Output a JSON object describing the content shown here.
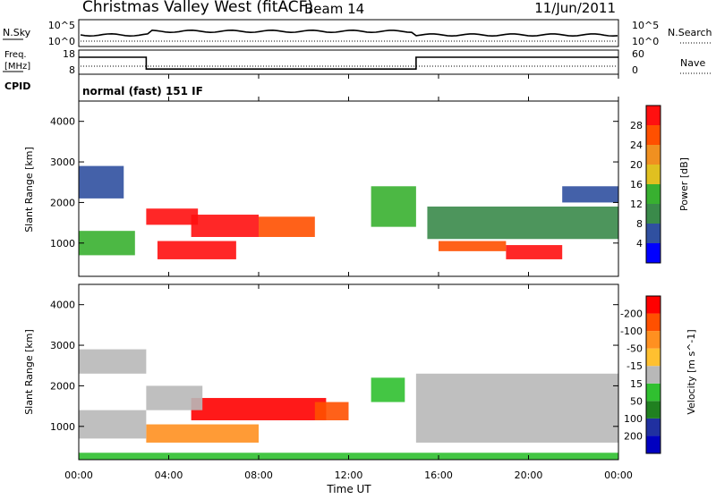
{
  "header": {
    "station": "Christmas Valley West (fitACF)",
    "beam": "Beam 14",
    "date": "11/Jun/2011"
  },
  "noise_panel": {
    "left_label": "N.Sky",
    "tick_hi": "10^5",
    "tick_lo": "10^0",
    "right_tick_hi": "10^5",
    "right_tick_lo": "10^0",
    "right_label": "N.Search"
  },
  "freq_panel": {
    "left_label_line1": "Freq.",
    "left_label_line2": "[MHz]",
    "tick_hi": "18",
    "tick_lo": "8",
    "right_tick_hi": "60",
    "right_tick_lo": "0",
    "right_label": "Nave"
  },
  "cpid_panel": {
    "label": "CPID",
    "mode": "normal (fast) 151 IF"
  },
  "axes": {
    "x_ticks": [
      "00:00",
      "04:00",
      "08:00",
      "12:00",
      "16:00",
      "20:00",
      "00:00"
    ],
    "x_label": "Time UT",
    "y_ticks": [
      "1000",
      "2000",
      "3000",
      "4000"
    ],
    "y_label": "Slant Range [km]"
  },
  "colors": {
    "power": [
      "#0000ff",
      "#3050a0",
      "#3a8a4a",
      "#38b030",
      "#e0c020",
      "#f09020",
      "#ff5000",
      "#ff1010"
    ],
    "velocity": [
      "#ff0000",
      "#ff5000",
      "#ff9020",
      "#ffc030",
      "#b8b8b8",
      "#30c030",
      "#208020",
      "#2030a0",
      "#0000c0"
    ]
  },
  "chart_data": [
    {
      "type": "heatmap",
      "panel": "power",
      "x_range_hours": [
        0,
        24
      ],
      "ylim": [
        180,
        4500
      ],
      "colorbar_label": "Power [dB]",
      "colorbar_ticks": [
        "4",
        "8",
        "12",
        "16",
        "20",
        "24",
        "28"
      ],
      "regions": [
        {
          "t0": 3.0,
          "t1": 5.3,
          "r0": 1450,
          "r1": 1850,
          "level": 7
        },
        {
          "t0": 5.0,
          "t1": 8.0,
          "r0": 1150,
          "r1": 1700,
          "level": 7
        },
        {
          "t0": 8.0,
          "t1": 10.5,
          "r0": 1150,
          "r1": 1650,
          "level": 6
        },
        {
          "t0": 3.5,
          "t1": 7.0,
          "r0": 600,
          "r1": 1050,
          "level": 7
        },
        {
          "t0": 19.0,
          "t1": 21.5,
          "r0": 600,
          "r1": 950,
          "level": 7
        },
        {
          "t0": 16.0,
          "t1": 19.0,
          "r0": 800,
          "r1": 1050,
          "level": 6
        },
        {
          "t0": 0.0,
          "t1": 2.5,
          "r0": 700,
          "r1": 1300,
          "level": 3
        },
        {
          "t0": 0.0,
          "t1": 2.0,
          "r0": 2100,
          "r1": 2900,
          "level": 1
        },
        {
          "t0": 13.0,
          "t1": 15.0,
          "r0": 1400,
          "r1": 2400,
          "level": 3
        },
        {
          "t0": 15.5,
          "t1": 24.0,
          "r0": 1100,
          "r1": 1900,
          "level": 2
        },
        {
          "t0": 21.5,
          "t1": 24.0,
          "r0": 2000,
          "r1": 2400,
          "level": 1
        }
      ]
    },
    {
      "type": "heatmap",
      "panel": "velocity",
      "x_range_hours": [
        0,
        24
      ],
      "ylim": [
        180,
        4500
      ],
      "colorbar_label": "Velocity [m s^-1]",
      "colorbar_ticks": [
        "200",
        "100",
        "50",
        "15",
        "-15",
        "-50",
        "-100",
        "-200"
      ],
      "regions": [
        {
          "t0": 5.0,
          "t1": 11.0,
          "r0": 1150,
          "r1": 1700,
          "velocity": -200
        },
        {
          "t0": 10.5,
          "t1": 12.0,
          "r0": 1150,
          "r1": 1600,
          "velocity": -100
        },
        {
          "t0": 3.0,
          "t1": 8.0,
          "r0": 600,
          "r1": 1050,
          "velocity": -50
        },
        {
          "t0": 3.0,
          "t1": 5.5,
          "r0": 1400,
          "r1": 2000,
          "velocity": 0
        },
        {
          "t0": 0.0,
          "t1": 3.0,
          "r0": 2300,
          "r1": 2900,
          "velocity": 0
        },
        {
          "t0": 0.0,
          "t1": 3.0,
          "r0": 700,
          "r1": 1400,
          "velocity": 0
        },
        {
          "t0": 15.0,
          "t1": 24.0,
          "r0": 600,
          "r1": 2300,
          "velocity": 0
        },
        {
          "t0": 13.0,
          "t1": 14.5,
          "r0": 1600,
          "r1": 2200,
          "velocity": 30
        },
        {
          "t0": 0.0,
          "t1": 24.0,
          "r0": 180,
          "r1": 350,
          "velocity": 30
        }
      ]
    },
    {
      "type": "line",
      "panel": "freq",
      "series": [
        {
          "x": [
            0,
            3,
            3,
            15,
            15,
            24
          ],
          "values": [
            15.5,
            15.5,
            10,
            10,
            15.5,
            15.5
          ]
        }
      ]
    }
  ]
}
